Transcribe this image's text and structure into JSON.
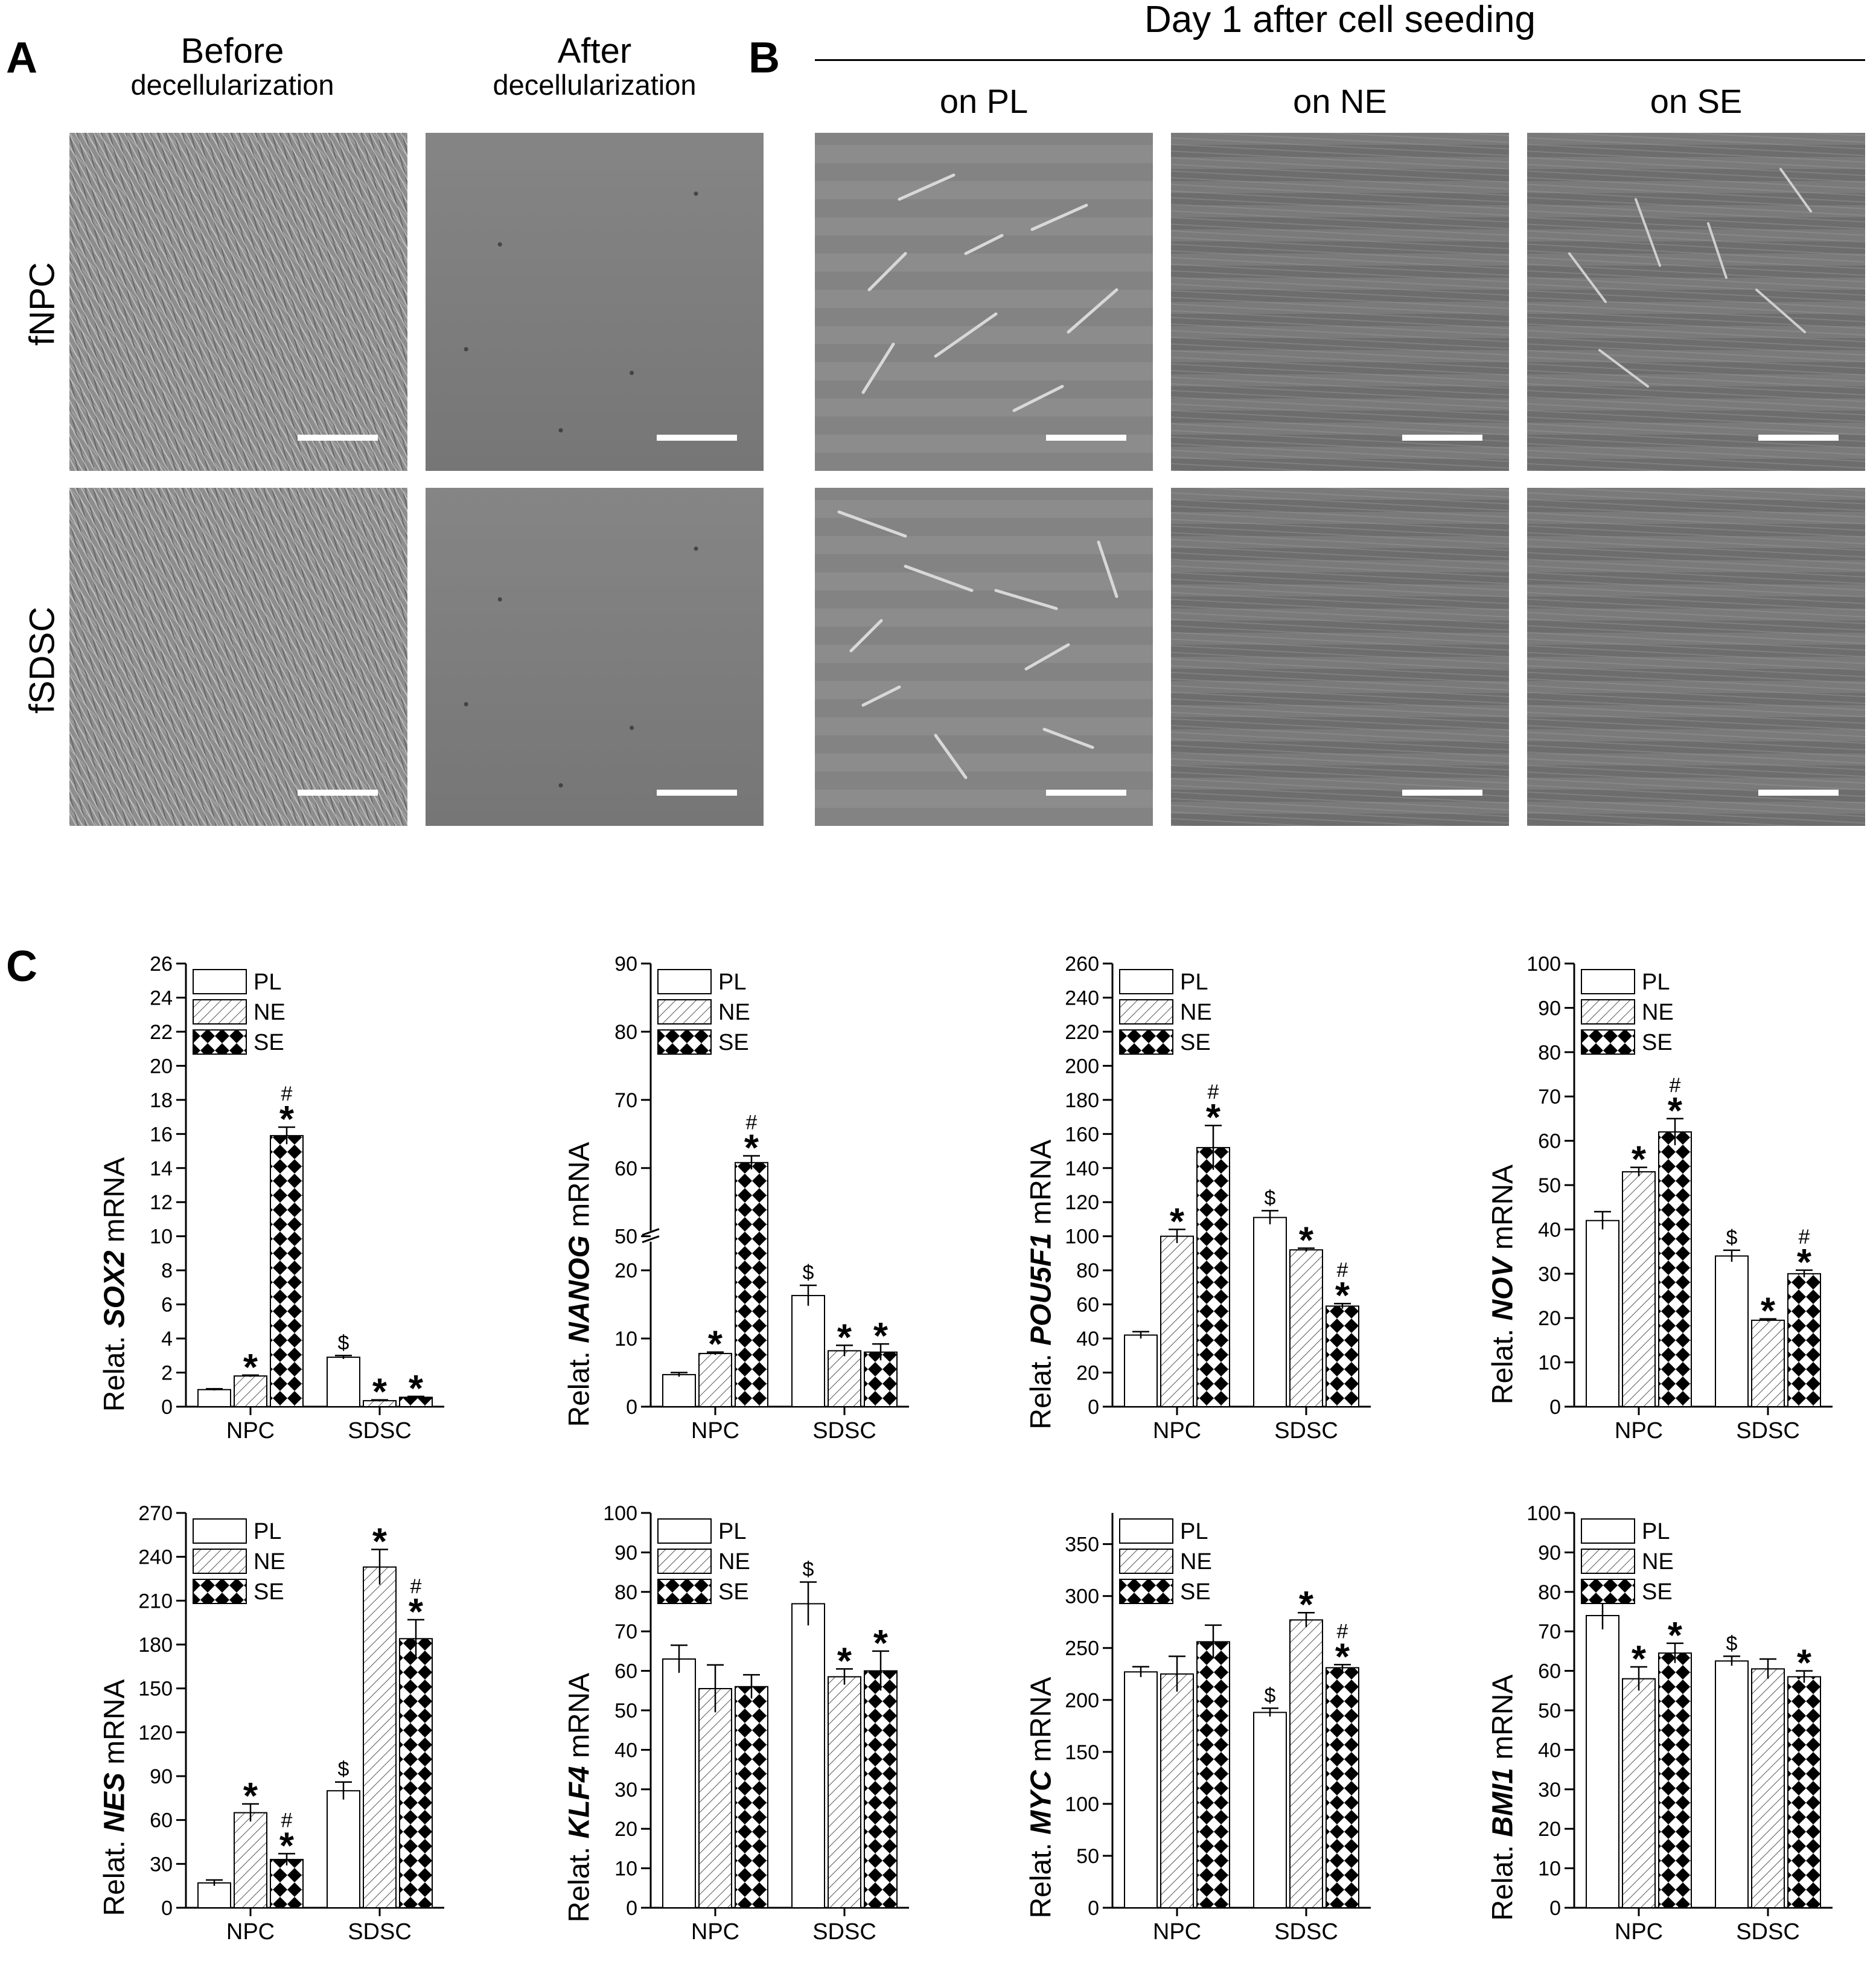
{
  "panel_a": {
    "letter": "A",
    "col_before_main": "Before",
    "col_before_sub": "decellularization",
    "col_after_main": "After",
    "col_after_sub": "decellularization",
    "row1": "fNPC",
    "row2": "fSDSC"
  },
  "panel_b": {
    "letter": "B",
    "title": "Day 1 after cell seeding",
    "col_pl": "on PL",
    "col_ne": "on NE",
    "col_se": "on SE"
  },
  "panel_c": {
    "letter": "C"
  },
  "colors": {
    "pl_fill": "#ffffff",
    "ne_hatch": "#555555",
    "se_check": "#000000",
    "axis": "#000000"
  },
  "chart_data": [
    {
      "type": "bar",
      "gene": "SOX2",
      "ylabel_pre": "Relat.",
      "ylabel_post": "mRNA",
      "categories": [
        "NPC",
        "SDSC"
      ],
      "legend": [
        "PL",
        "NE",
        "SE"
      ],
      "ylim": [
        0,
        26
      ],
      "yticks": [
        0,
        2,
        4,
        6,
        8,
        10,
        12,
        14,
        16,
        18,
        20,
        22,
        24,
        26
      ],
      "series": [
        {
          "name": "PL",
          "values": [
            1.0,
            2.9
          ],
          "errors": [
            0.05,
            0.1
          ],
          "marks": [
            "",
            "$"
          ]
        },
        {
          "name": "NE",
          "values": [
            1.8,
            0.35
          ],
          "errors": [
            0.05,
            0.05
          ],
          "marks": [
            "*",
            "*"
          ]
        },
        {
          "name": "SE",
          "values": [
            15.9,
            0.55
          ],
          "errors": [
            0.5,
            0.05
          ],
          "marks": [
            "#*",
            "*"
          ]
        }
      ]
    },
    {
      "type": "bar",
      "gene": "NANOG",
      "ylabel_pre": "Relat.",
      "ylabel_post": "mRNA",
      "categories": [
        "NPC",
        "SDSC"
      ],
      "legend": [
        "PL",
        "NE",
        "SE"
      ],
      "ylim": [
        0,
        90
      ],
      "axis_break": [
        25,
        50
      ],
      "yticks": [
        0,
        10,
        20,
        50,
        60,
        70,
        80,
        90
      ],
      "series": [
        {
          "name": "PL",
          "values": [
            4.7,
            16.3
          ],
          "errors": [
            0.3,
            1.5
          ],
          "marks": [
            "",
            "$"
          ]
        },
        {
          "name": "NE",
          "values": [
            7.8,
            8.2
          ],
          "errors": [
            0.2,
            0.8
          ],
          "marks": [
            "*",
            "*"
          ]
        },
        {
          "name": "SE",
          "values": [
            60.8,
            8.0
          ],
          "errors": [
            1.0,
            1.2
          ],
          "marks": [
            "#*",
            "*"
          ]
        }
      ]
    },
    {
      "type": "bar",
      "gene": "POU5F1",
      "ylabel_pre": "Relat.",
      "ylabel_post": "mRNA",
      "categories": [
        "NPC",
        "SDSC"
      ],
      "legend": [
        "PL",
        "NE",
        "SE"
      ],
      "ylim": [
        0,
        260
      ],
      "yticks": [
        0,
        20,
        40,
        60,
        80,
        100,
        120,
        140,
        160,
        180,
        200,
        220,
        240,
        260
      ],
      "series": [
        {
          "name": "PL",
          "values": [
            42,
            111
          ],
          "errors": [
            2,
            4
          ],
          "marks": [
            "",
            "$"
          ]
        },
        {
          "name": "NE",
          "values": [
            100,
            92
          ],
          "errors": [
            4,
            1
          ],
          "marks": [
            "*",
            "*"
          ]
        },
        {
          "name": "SE",
          "values": [
            152,
            59
          ],
          "errors": [
            13,
            1.5
          ],
          "marks": [
            "#*",
            "#*"
          ]
        }
      ]
    },
    {
      "type": "bar",
      "gene": "NOV",
      "ylabel_pre": "Relat.",
      "ylabel_post": "mRNA",
      "categories": [
        "NPC",
        "SDSC"
      ],
      "legend": [
        "PL",
        "NE",
        "SE"
      ],
      "ylim": [
        0,
        100
      ],
      "yticks": [
        0,
        10,
        20,
        30,
        40,
        50,
        60,
        70,
        80,
        90,
        100
      ],
      "series": [
        {
          "name": "PL",
          "values": [
            42,
            34
          ],
          "errors": [
            2,
            1.3
          ],
          "marks": [
            "",
            "$"
          ]
        },
        {
          "name": "NE",
          "values": [
            53,
            19.5
          ],
          "errors": [
            1,
            0.3
          ],
          "marks": [
            "*",
            "*"
          ]
        },
        {
          "name": "SE",
          "values": [
            62,
            30
          ],
          "errors": [
            3,
            0.8
          ],
          "marks": [
            "#*",
            "#*"
          ]
        }
      ]
    },
    {
      "type": "bar",
      "gene": "NES",
      "ylabel_pre": "Relat.",
      "ylabel_post": "mRNA",
      "categories": [
        "NPC",
        "SDSC"
      ],
      "legend": [
        "PL",
        "NE",
        "SE"
      ],
      "ylim": [
        0,
        270
      ],
      "yticks": [
        0,
        30,
        60,
        90,
        120,
        150,
        180,
        210,
        240,
        270
      ],
      "series": [
        {
          "name": "PL",
          "values": [
            17,
            80
          ],
          "errors": [
            2,
            6
          ],
          "marks": [
            "",
            "$"
          ]
        },
        {
          "name": "NE",
          "values": [
            65,
            233
          ],
          "errors": [
            6,
            12
          ],
          "marks": [
            "*",
            "*"
          ]
        },
        {
          "name": "SE",
          "values": [
            33,
            184
          ],
          "errors": [
            4,
            13
          ],
          "marks": [
            "#*",
            "#*"
          ]
        }
      ]
    },
    {
      "type": "bar",
      "gene": "KLF4",
      "ylabel_pre": "Relat.",
      "ylabel_post": "mRNA",
      "categories": [
        "NPC",
        "SDSC"
      ],
      "legend": [
        "PL",
        "NE",
        "SE"
      ],
      "ylim": [
        0,
        100
      ],
      "yticks": [
        0,
        10,
        20,
        30,
        40,
        50,
        60,
        70,
        80,
        90,
        100
      ],
      "series": [
        {
          "name": "PL",
          "values": [
            63,
            77
          ],
          "errors": [
            3.5,
            5.5
          ],
          "marks": [
            "",
            "$"
          ]
        },
        {
          "name": "NE",
          "values": [
            55.5,
            58.5
          ],
          "errors": [
            6,
            2
          ],
          "marks": [
            "",
            "*"
          ]
        },
        {
          "name": "SE",
          "values": [
            56,
            60
          ],
          "errors": [
            3,
            5
          ],
          "marks": [
            "",
            "*"
          ]
        }
      ]
    },
    {
      "type": "bar",
      "gene": "MYC",
      "ylabel_pre": "Relat.",
      "ylabel_post": "mRNA",
      "categories": [
        "NPC",
        "SDSC"
      ],
      "legend": [
        "PL",
        "NE",
        "SE"
      ],
      "ylim": [
        0,
        380
      ],
      "yticks": [
        0,
        50,
        100,
        150,
        200,
        250,
        300,
        350
      ],
      "series": [
        {
          "name": "PL",
          "values": [
            227,
            188
          ],
          "errors": [
            5,
            4
          ],
          "marks": [
            "",
            "$"
          ]
        },
        {
          "name": "NE",
          "values": [
            225,
            277
          ],
          "errors": [
            17,
            7
          ],
          "marks": [
            "",
            "*"
          ]
        },
        {
          "name": "SE",
          "values": [
            256,
            231
          ],
          "errors": [
            16,
            3
          ],
          "marks": [
            "",
            "#*"
          ]
        }
      ]
    },
    {
      "type": "bar",
      "gene": "BMI1",
      "ylabel_pre": "Relat.",
      "ylabel_post": "mRNA",
      "categories": [
        "NPC",
        "SDSC"
      ],
      "legend": [
        "PL",
        "NE",
        "SE"
      ],
      "ylim": [
        0,
        100
      ],
      "yticks": [
        0,
        10,
        20,
        30,
        40,
        50,
        60,
        70,
        80,
        90,
        100
      ],
      "series": [
        {
          "name": "PL",
          "values": [
            74,
            62.5
          ],
          "errors": [
            3.5,
            1.2
          ],
          "marks": [
            "",
            "$"
          ]
        },
        {
          "name": "NE",
          "values": [
            58,
            60.5
          ],
          "errors": [
            3,
            2.5
          ],
          "marks": [
            "*",
            ""
          ]
        },
        {
          "name": "SE",
          "values": [
            64.5,
            58.5
          ],
          "errors": [
            2.5,
            1.5
          ],
          "marks": [
            "*",
            "*"
          ]
        }
      ]
    }
  ]
}
